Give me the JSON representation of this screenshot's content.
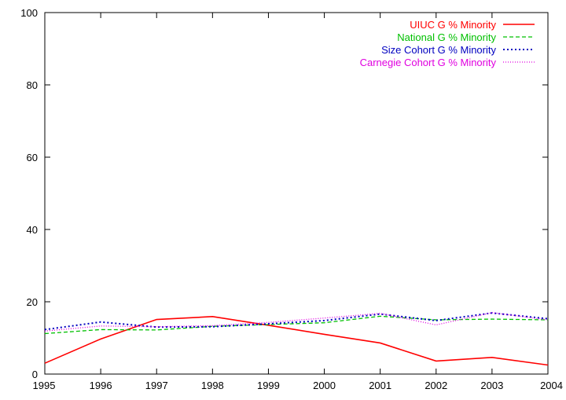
{
  "chart_data": {
    "type": "line",
    "title": "",
    "xlabel": "",
    "ylabel": "",
    "x": [
      1995,
      1996,
      1997,
      1998,
      1999,
      2000,
      2001,
      2002,
      2003,
      2004
    ],
    "xlim": [
      1995,
      2004
    ],
    "ylim": [
      0,
      100
    ],
    "xticks": [
      "1995",
      "1996",
      "1997",
      "1998",
      "1999",
      "2000",
      "2001",
      "2002",
      "2003",
      "2004"
    ],
    "yticks": [
      "0",
      "20",
      "40",
      "60",
      "80",
      "100"
    ],
    "grid": false,
    "legend_position": "top-right",
    "series": [
      {
        "name": "UIUC G % Minority",
        "color": "#ff0000",
        "dash": "solid",
        "values": [
          3.0,
          9.7,
          15.1,
          15.9,
          13.5,
          11.0,
          8.6,
          3.6,
          4.6,
          2.5
        ]
      },
      {
        "name": "National G % Minority",
        "color": "#00c000",
        "dash": "dashed",
        "values": [
          11.2,
          12.3,
          12.2,
          13.2,
          13.7,
          14.2,
          16.0,
          15.0,
          15.2,
          15.0
        ]
      },
      {
        "name": "Size Cohort G % Minority",
        "color": "#0000c0",
        "dash": "dotted",
        "values": [
          12.3,
          14.4,
          13.0,
          13.1,
          13.9,
          14.8,
          16.6,
          14.8,
          16.9,
          15.3
        ]
      },
      {
        "name": "Carnegie Cohort G % Minority",
        "color": "#e000e0",
        "dash": "fine-dotted",
        "values": [
          11.9,
          13.3,
          13.1,
          13.4,
          14.3,
          15.5,
          16.8,
          13.6,
          17.0,
          15.0
        ]
      }
    ]
  }
}
